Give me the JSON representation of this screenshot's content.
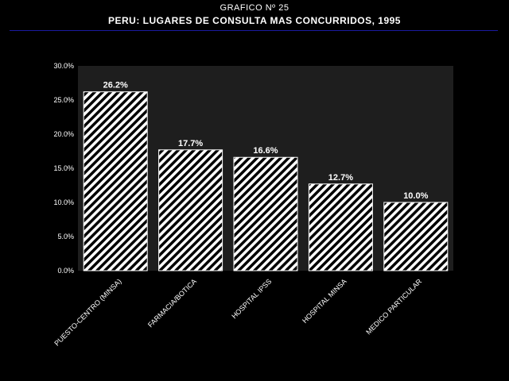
{
  "header": {
    "subtitle": "GRAFICO Nº 25",
    "title": "PERU: LUGARES DE CONSULTA MAS CONCURRIDOS, 1995"
  },
  "colors": {
    "background": "#000000",
    "plot_area": "#1e1e1e",
    "bar_stripe": "#ffffff",
    "rule": "#1a1aa0"
  },
  "chart_data": {
    "type": "bar",
    "title": "PERU: LUGARES DE CONSULTA MAS CONCURRIDOS, 1995",
    "xlabel": "",
    "ylabel": "",
    "categories": [
      "PUESTO-CENTRO (MINSA)",
      "FARMACIA/BOTICA",
      "HOSPITAL IPSS",
      "HOSPITAL MINSA",
      "MEDICO PARTICULAR"
    ],
    "values": [
      26.2,
      17.7,
      16.6,
      12.7,
      10.0
    ],
    "data_labels": [
      "26.2%",
      "17.7%",
      "16.6%",
      "12.7%",
      "10.0%"
    ],
    "ylim": [
      0,
      30
    ],
    "yticks": [
      0,
      5,
      10,
      15,
      20,
      25,
      30
    ],
    "ytick_labels": [
      "0.0%",
      "5.0%",
      "10.0%",
      "15.0%",
      "20.0%",
      "25.0%",
      "30.0%"
    ],
    "grid": false,
    "legend": "none",
    "bar_pattern": "diagonal-hatch"
  }
}
